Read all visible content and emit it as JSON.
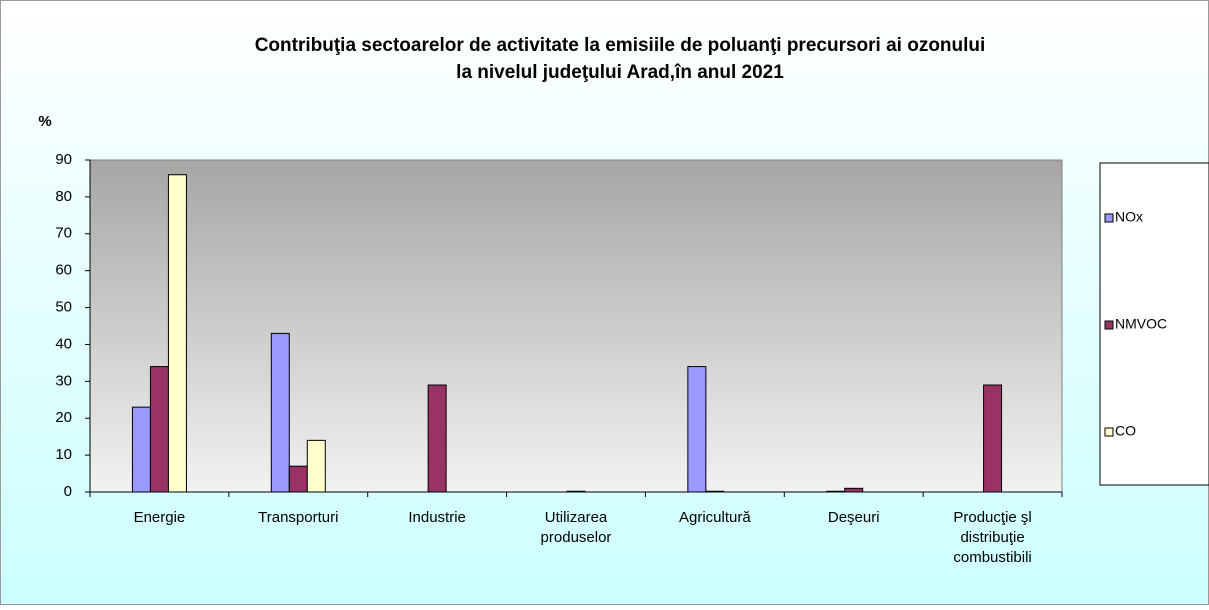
{
  "chart_data": {
    "type": "bar",
    "title": [
      "Contribuţia sectoarelor de activitate la emisiile de poluanţi precursori ai ozonului",
      "la nivelul judeţului Arad,în anul 2021"
    ],
    "y_label": "%",
    "categories": [
      "Energie",
      "Transporturi",
      "Industrie",
      "Utilizarea\nproduselor",
      "Agricultură",
      "Deşeuri",
      "Producţie şl\ndistribuţie\ncombustibili"
    ],
    "series": [
      {
        "name": "NOx",
        "color": "#9999ff",
        "values": [
          23,
          43,
          0,
          0,
          34,
          0.2,
          0
        ]
      },
      {
        "name": "NMVOC",
        "color": "#993366",
        "values": [
          34,
          7,
          29,
          0.2,
          0.2,
          1,
          29
        ]
      },
      {
        "name": "CO",
        "color": "#ffffcc",
        "values": [
          86,
          14,
          0,
          0,
          0,
          0,
          0
        ]
      }
    ],
    "ylim": [
      0,
      90
    ],
    "yticks": [
      0,
      10,
      20,
      30,
      40,
      50,
      60,
      70,
      80,
      90
    ],
    "legend": "right"
  }
}
